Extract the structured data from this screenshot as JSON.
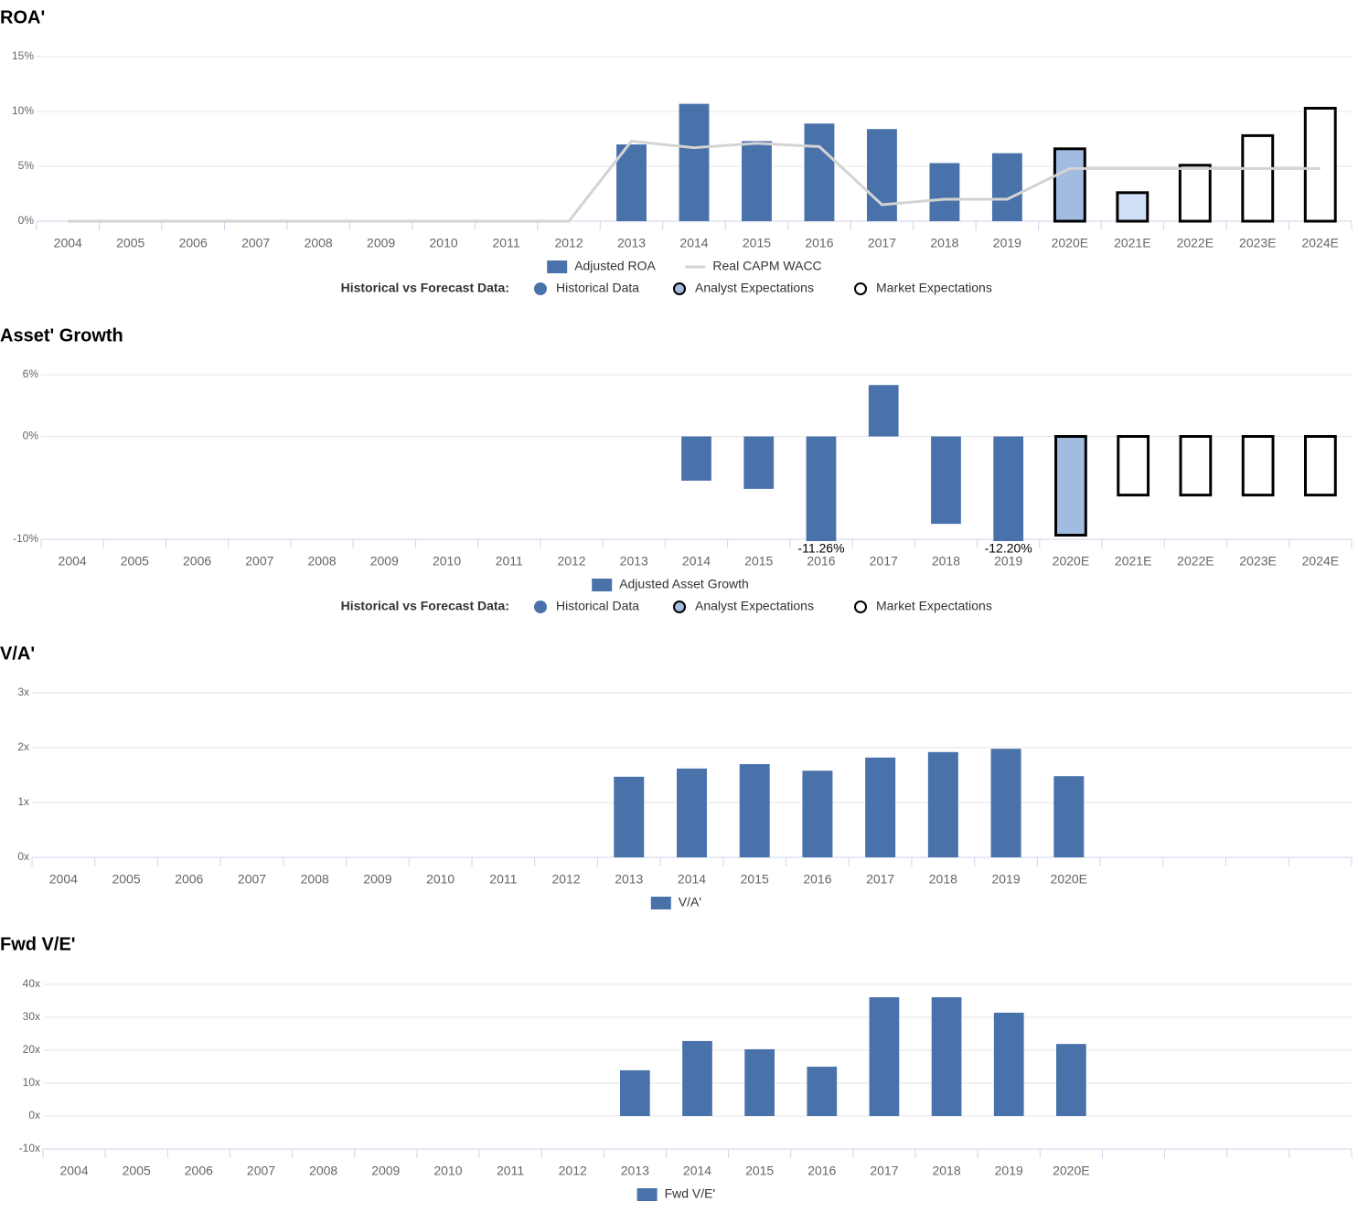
{
  "chart_data": [
    {
      "type": "bar",
      "title": "ROA'",
      "categories": [
        "2004",
        "2005",
        "2006",
        "2007",
        "2008",
        "2009",
        "2010",
        "2011",
        "2012",
        "2013",
        "2014",
        "2015",
        "2016",
        "2017",
        "2018",
        "2019",
        "2020E",
        "2021E",
        "2022E",
        "2023E",
        "2024E"
      ],
      "series": [
        {
          "name": "Adjusted ROA",
          "type": "bar",
          "color": "#4a72aa",
          "values": [
            null,
            null,
            null,
            null,
            null,
            null,
            null,
            null,
            null,
            7.0,
            10.7,
            7.3,
            8.9,
            8.4,
            5.3,
            6.2,
            6.6,
            2.6,
            5.1,
            7.8,
            10.3
          ],
          "bar_colors": [
            null,
            null,
            null,
            null,
            null,
            null,
            null,
            null,
            null,
            "#4a72aa",
            "#4a72aa",
            "#4a72aa",
            "#4a72aa",
            "#4a72aa",
            "#4a72aa",
            "#4a72aa",
            "#a2bbe0",
            "#cfe0f7",
            "#ffffff",
            "#ffffff",
            "#ffffff"
          ],
          "bar_edges": [
            null,
            null,
            null,
            null,
            null,
            null,
            null,
            null,
            null,
            null,
            null,
            null,
            null,
            null,
            null,
            null,
            "#000000",
            "#000000",
            "#000000",
            "#000000",
            "#000000"
          ]
        },
        {
          "name": "Real CAPM WACC",
          "type": "line",
          "color": "#d3d3d3",
          "values": [
            0,
            0,
            0,
            0,
            0,
            0,
            0,
            0,
            0,
            7.3,
            6.7,
            7.1,
            6.8,
            1.5,
            2.0,
            2.0,
            4.8,
            4.8,
            4.8,
            4.8,
            4.8
          ]
        }
      ],
      "ylim": [
        0,
        15
      ],
      "yticks": [
        {
          "value": 0,
          "label": "0%"
        },
        {
          "value": 5,
          "label": "5%"
        },
        {
          "value": 10,
          "label": "10%"
        },
        {
          "value": 15,
          "label": "15%"
        }
      ],
      "grid": true,
      "forecast_legend": {
        "title": "Historical vs Forecast Data:",
        "items": [
          {
            "label": "Historical Data",
            "color": "#4a72aa",
            "edge": "#4a72aa"
          },
          {
            "label": "Analyst Expectations",
            "color": "#a2bbe0",
            "edge": "#000000"
          },
          {
            "label": "Market Expectations",
            "color": "#ffffff",
            "edge": "#000000"
          }
        ]
      }
    },
    {
      "type": "bar",
      "title": "Asset' Growth",
      "categories": [
        "2004",
        "2005",
        "2006",
        "2007",
        "2008",
        "2009",
        "2010",
        "2011",
        "2012",
        "2013",
        "2014",
        "2015",
        "2016",
        "2017",
        "2018",
        "2019",
        "2020E",
        "2021E",
        "2022E",
        "2023E",
        "2024E"
      ],
      "series": [
        {
          "name": "Adjusted Asset Growth",
          "type": "bar",
          "color": "#4a72aa",
          "values": [
            null,
            null,
            null,
            null,
            null,
            null,
            null,
            null,
            null,
            null,
            -4.3,
            -5.1,
            -11.26,
            5.0,
            -8.5,
            -12.2,
            -9.6,
            -5.7,
            -5.7,
            -5.7,
            -5.7
          ],
          "value_labels": [
            null,
            null,
            null,
            null,
            null,
            null,
            null,
            null,
            null,
            null,
            null,
            null,
            "-11.26%",
            null,
            null,
            "-12.20%",
            null,
            null,
            null,
            null,
            null
          ],
          "bar_colors": [
            null,
            null,
            null,
            null,
            null,
            null,
            null,
            null,
            null,
            null,
            "#4a72aa",
            "#4a72aa",
            "#4a72aa",
            "#4a72aa",
            "#4a72aa",
            "#4a72aa",
            "#a2bbe0",
            "#ffffff",
            "#ffffff",
            "#ffffff",
            "#ffffff"
          ],
          "bar_edges": [
            null,
            null,
            null,
            null,
            null,
            null,
            null,
            null,
            null,
            null,
            null,
            null,
            null,
            null,
            null,
            null,
            "#000000",
            "#000000",
            "#000000",
            "#000000",
            "#000000"
          ]
        }
      ],
      "ylim": [
        -10,
        6
      ],
      "yticks": [
        {
          "value": -10,
          "label": "-10%"
        },
        {
          "value": 0,
          "label": "0%"
        },
        {
          "value": 6,
          "label": "6%"
        }
      ],
      "grid": true,
      "forecast_legend": {
        "title": "Historical vs Forecast Data:",
        "items": [
          {
            "label": "Historical Data",
            "color": "#4a72aa",
            "edge": "#4a72aa"
          },
          {
            "label": "Analyst Expectations",
            "color": "#a2bbe0",
            "edge": "#000000"
          },
          {
            "label": "Market Expectations",
            "color": "#ffffff",
            "edge": "#000000"
          }
        ]
      }
    },
    {
      "type": "bar",
      "title": "V/A'",
      "categories": [
        "2004",
        "2005",
        "2006",
        "2007",
        "2008",
        "2009",
        "2010",
        "2011",
        "2012",
        "2013",
        "2014",
        "2015",
        "2016",
        "2017",
        "2018",
        "2019",
        "2020E",
        null,
        null,
        null,
        null
      ],
      "series": [
        {
          "name": "V/A'",
          "type": "bar",
          "color": "#4a72aa",
          "values": [
            null,
            null,
            null,
            null,
            null,
            null,
            null,
            null,
            null,
            1.47,
            1.62,
            1.7,
            1.58,
            1.82,
            1.92,
            1.98,
            1.48,
            null,
            null,
            null,
            null
          ]
        }
      ],
      "ylim": [
        0,
        3
      ],
      "yticks": [
        {
          "value": 0,
          "label": "0x"
        },
        {
          "value": 1,
          "label": "1x"
        },
        {
          "value": 2,
          "label": "2x"
        },
        {
          "value": 3,
          "label": "3x"
        }
      ],
      "grid": true
    },
    {
      "type": "bar",
      "title": "Fwd V/E'",
      "categories": [
        "2004",
        "2005",
        "2006",
        "2007",
        "2008",
        "2009",
        "2010",
        "2011",
        "2012",
        "2013",
        "2014",
        "2015",
        "2016",
        "2017",
        "2018",
        "2019",
        "2020E",
        null,
        null,
        null,
        null
      ],
      "series": [
        {
          "name": "Fwd V/E'",
          "type": "bar",
          "color": "#4a72aa",
          "values": [
            null,
            null,
            null,
            null,
            null,
            null,
            null,
            null,
            null,
            13.9,
            22.8,
            20.3,
            15.0,
            36.1,
            36.1,
            31.4,
            21.9,
            null,
            null,
            null,
            null
          ]
        }
      ],
      "ylim": [
        -10,
        40
      ],
      "yticks": [
        {
          "value": -10,
          "label": "-10x"
        },
        {
          "value": 0,
          "label": "0x"
        },
        {
          "value": 10,
          "label": "10x"
        },
        {
          "value": 20,
          "label": "20x"
        },
        {
          "value": 30,
          "label": "30x"
        },
        {
          "value": 40,
          "label": "40x"
        }
      ],
      "grid": true
    }
  ]
}
